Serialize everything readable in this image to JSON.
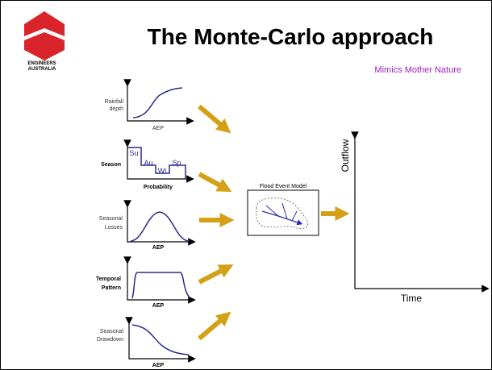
{
  "logo": {
    "line1": "ENGINEERS",
    "line2": "AUSTRALIA"
  },
  "title": "The Monte-Carlo approach",
  "subtitle": "Mimics Mother Nature",
  "inputs": [
    {
      "y_label": [
        "Rainfall",
        "depth"
      ],
      "x_label": "AEP"
    },
    {
      "y_label": [
        "Season"
      ],
      "x_label": "Probability",
      "bar_labels": [
        "Su",
        "Au",
        "Wi",
        "Sp"
      ]
    },
    {
      "y_label": [
        "Seasonal",
        "Losses"
      ],
      "x_label": "AEP"
    },
    {
      "y_label": [
        "Temporal",
        "Pattern"
      ],
      "x_label": "AEP"
    },
    {
      "y_label": [
        "Seasonal",
        "Drawdown"
      ],
      "x_label": "AEP"
    }
  ],
  "model": {
    "label": "Flood Event Model"
  },
  "output": {
    "y_label": "Outflow",
    "x_label": "Time"
  }
}
